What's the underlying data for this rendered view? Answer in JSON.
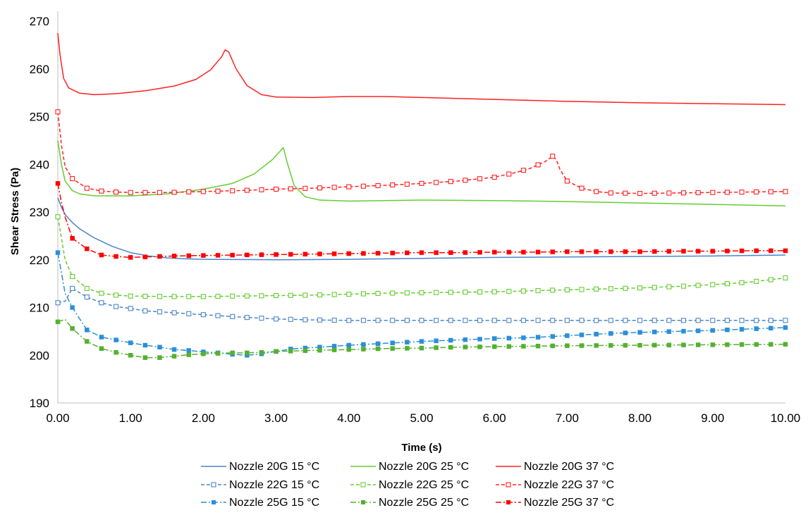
{
  "chart_data": {
    "type": "line",
    "title": "",
    "xlabel": "Time (s)",
    "ylabel": "Shear Stress (Pa)",
    "xlim": [
      0,
      10
    ],
    "ylim": [
      190,
      270
    ],
    "x_ticks": [
      "0.00",
      "1.00",
      "2.00",
      "3.00",
      "4.00",
      "5.00",
      "6.00",
      "7.00",
      "8.00",
      "9.00",
      "10.00"
    ],
    "y_ticks": [
      "190",
      "200",
      "210",
      "220",
      "230",
      "240",
      "250",
      "260",
      "270"
    ],
    "grid": false,
    "legend_position": "bottom",
    "series": [
      {
        "name": "Nozzle 20G 15 °C",
        "color": "#4a86c8",
        "style": "solid",
        "marker": "none",
        "points": [
          [
            0,
            233
          ],
          [
            0.05,
            231
          ],
          [
            0.1,
            229.5
          ],
          [
            0.2,
            227.8
          ],
          [
            0.3,
            226.5
          ],
          [
            0.5,
            224.6
          ],
          [
            0.75,
            222.8
          ],
          [
            1.0,
            221.5
          ],
          [
            1.25,
            220.8
          ],
          [
            1.5,
            220.4
          ],
          [
            1.75,
            220.2
          ],
          [
            2.0,
            220.1
          ],
          [
            3.0,
            220.0
          ],
          [
            4.0,
            220.1
          ],
          [
            5.0,
            220.3
          ],
          [
            6.0,
            220.5
          ],
          [
            7.0,
            220.6
          ],
          [
            8.0,
            220.7
          ],
          [
            9.0,
            220.8
          ],
          [
            10.0,
            221.0
          ]
        ]
      },
      {
        "name": "Nozzle 20G 25 °C",
        "color": "#66cc33",
        "style": "solid",
        "marker": "none",
        "points": [
          [
            0,
            245
          ],
          [
            0.05,
            240
          ],
          [
            0.1,
            236.5
          ],
          [
            0.2,
            234.5
          ],
          [
            0.3,
            233.8
          ],
          [
            0.5,
            233.4
          ],
          [
            1.0,
            233.4
          ],
          [
            1.5,
            233.8
          ],
          [
            2.0,
            234.8
          ],
          [
            2.4,
            236.0
          ],
          [
            2.7,
            238.0
          ],
          [
            2.95,
            241.0
          ],
          [
            3.1,
            243.5
          ],
          [
            3.15,
            240.5
          ],
          [
            3.25,
            235.5
          ],
          [
            3.4,
            233.2
          ],
          [
            3.6,
            232.5
          ],
          [
            4.0,
            232.3
          ],
          [
            5.0,
            232.5
          ],
          [
            6.0,
            232.4
          ],
          [
            7.0,
            232.2
          ],
          [
            8.0,
            231.9
          ],
          [
            9.0,
            231.6
          ],
          [
            10.0,
            231.3
          ]
        ]
      },
      {
        "name": "Nozzle 20G 37 °C",
        "color": "#ff2020",
        "style": "solid",
        "marker": "none",
        "points": [
          [
            0,
            267.5
          ],
          [
            0.03,
            263
          ],
          [
            0.08,
            258
          ],
          [
            0.15,
            256
          ],
          [
            0.3,
            254.9
          ],
          [
            0.5,
            254.6
          ],
          [
            0.8,
            254.8
          ],
          [
            1.2,
            255.4
          ],
          [
            1.6,
            256.4
          ],
          [
            1.9,
            257.8
          ],
          [
            2.1,
            259.8
          ],
          [
            2.25,
            262.5
          ],
          [
            2.3,
            264.0
          ],
          [
            2.35,
            263.5
          ],
          [
            2.45,
            260.0
          ],
          [
            2.6,
            256.5
          ],
          [
            2.8,
            254.6
          ],
          [
            3.0,
            254.1
          ],
          [
            3.5,
            254.0
          ],
          [
            4.0,
            254.2
          ],
          [
            4.5,
            254.2
          ],
          [
            5.0,
            254.0
          ],
          [
            6.0,
            253.6
          ],
          [
            7.0,
            253.2
          ],
          [
            8.0,
            252.9
          ],
          [
            9.0,
            252.7
          ],
          [
            10.0,
            252.5
          ]
        ]
      },
      {
        "name": "Nozzle 22G 15 °C",
        "color": "#4a86c8",
        "style": "dashed",
        "marker": "open-square",
        "points": [
          [
            0,
            211
          ],
          [
            0.1,
            211.3
          ],
          [
            0.2,
            214
          ],
          [
            0.4,
            212.2
          ],
          [
            0.6,
            211.0
          ],
          [
            0.8,
            210.2
          ],
          [
            1.0,
            209.8
          ],
          [
            1.2,
            209.3
          ],
          [
            1.4,
            209.1
          ],
          [
            1.6,
            208.9
          ],
          [
            1.8,
            208.7
          ],
          [
            2.0,
            208.5
          ],
          [
            2.5,
            208.0
          ],
          [
            3.0,
            207.6
          ],
          [
            3.5,
            207.4
          ],
          [
            4.0,
            207.3
          ],
          [
            5.0,
            207.3
          ],
          [
            6.0,
            207.3
          ],
          [
            7.0,
            207.3
          ],
          [
            8.0,
            207.3
          ],
          [
            9.0,
            207.3
          ],
          [
            10.0,
            207.3
          ]
        ]
      },
      {
        "name": "Nozzle 22G 25 °C",
        "color": "#66cc33",
        "style": "dashed",
        "marker": "open-square",
        "points": [
          [
            0,
            229
          ],
          [
            0.1,
            220
          ],
          [
            0.2,
            216.5
          ],
          [
            0.4,
            214.0
          ],
          [
            0.6,
            213.0
          ],
          [
            0.8,
            212.6
          ],
          [
            1.0,
            212.4
          ],
          [
            1.5,
            212.3
          ],
          [
            2.0,
            212.3
          ],
          [
            2.5,
            212.4
          ],
          [
            3.0,
            212.5
          ],
          [
            3.5,
            212.6
          ],
          [
            4.0,
            212.8
          ],
          [
            4.5,
            213.0
          ],
          [
            5.0,
            213.1
          ],
          [
            5.5,
            213.2
          ],
          [
            6.0,
            213.3
          ],
          [
            6.5,
            213.5
          ],
          [
            7.0,
            213.7
          ],
          [
            7.5,
            213.9
          ],
          [
            8.0,
            214.1
          ],
          [
            8.5,
            214.4
          ],
          [
            9.0,
            214.8
          ],
          [
            9.5,
            215.3
          ],
          [
            10.0,
            216.2
          ]
        ]
      },
      {
        "name": "Nozzle 22G 37 °C",
        "color": "#ff2020",
        "style": "dashed",
        "marker": "open-square",
        "points": [
          [
            0,
            251
          ],
          [
            0.05,
            244
          ],
          [
            0.1,
            239.5
          ],
          [
            0.2,
            237.0
          ],
          [
            0.4,
            235.0
          ],
          [
            0.6,
            234.4
          ],
          [
            0.8,
            234.2
          ],
          [
            1.0,
            234.1
          ],
          [
            1.5,
            234.1
          ],
          [
            2.0,
            234.3
          ],
          [
            2.5,
            234.5
          ],
          [
            3.0,
            234.8
          ],
          [
            3.5,
            235.0
          ],
          [
            4.0,
            235.3
          ],
          [
            4.5,
            235.6
          ],
          [
            5.0,
            236.0
          ],
          [
            5.5,
            236.5
          ],
          [
            6.0,
            237.3
          ],
          [
            6.3,
            238.3
          ],
          [
            6.5,
            239.2
          ],
          [
            6.7,
            240.6
          ],
          [
            6.8,
            241.7
          ],
          [
            6.85,
            241.0
          ],
          [
            6.9,
            239.0
          ],
          [
            7.0,
            236.5
          ],
          [
            7.2,
            235.0
          ],
          [
            7.4,
            234.3
          ],
          [
            7.6,
            234.0
          ],
          [
            8.0,
            233.9
          ],
          [
            8.5,
            234.0
          ],
          [
            9.0,
            234.1
          ],
          [
            9.5,
            234.2
          ],
          [
            10.0,
            234.3
          ]
        ]
      },
      {
        "name": "Nozzle 25G 15 °C",
        "color": "#2b8fd8",
        "style": "dashdot",
        "marker": "filled-square",
        "points": [
          [
            0,
            221.5
          ],
          [
            0.1,
            213
          ],
          [
            0.2,
            210
          ],
          [
            0.4,
            205.3
          ],
          [
            0.6,
            203.8
          ],
          [
            0.8,
            203.2
          ],
          [
            1.0,
            202.6
          ],
          [
            1.2,
            202.1
          ],
          [
            1.4,
            201.7
          ],
          [
            1.6,
            201.2
          ],
          [
            1.8,
            201.0
          ],
          [
            2.0,
            200.7
          ],
          [
            2.2,
            200.5
          ],
          [
            2.4,
            200.2
          ],
          [
            2.6,
            200.0
          ],
          [
            2.8,
            200.3
          ],
          [
            3.0,
            200.8
          ],
          [
            3.2,
            201.3
          ],
          [
            3.5,
            201.6
          ],
          [
            4.0,
            202.1
          ],
          [
            4.5,
            202.5
          ],
          [
            5.0,
            202.9
          ],
          [
            5.5,
            203.2
          ],
          [
            6.0,
            203.5
          ],
          [
            6.5,
            203.7
          ],
          [
            7.0,
            204.1
          ],
          [
            7.5,
            204.5
          ],
          [
            8.0,
            204.8
          ],
          [
            8.5,
            205.0
          ],
          [
            9.0,
            205.2
          ],
          [
            9.5,
            205.5
          ],
          [
            10.0,
            205.8
          ]
        ]
      },
      {
        "name": "Nozzle 25G 25 °C",
        "color": "#55b030",
        "style": "dashdot",
        "marker": "filled-square",
        "points": [
          [
            0,
            207
          ],
          [
            0.1,
            207.5
          ],
          [
            0.2,
            205.6
          ],
          [
            0.4,
            202.9
          ],
          [
            0.6,
            201.4
          ],
          [
            0.8,
            200.6
          ],
          [
            1.0,
            200.0
          ],
          [
            1.2,
            199.5
          ],
          [
            1.4,
            199.5
          ],
          [
            1.6,
            199.8
          ],
          [
            1.8,
            200.1
          ],
          [
            2.0,
            200.3
          ],
          [
            2.2,
            200.4
          ],
          [
            2.4,
            200.5
          ],
          [
            2.6,
            200.5
          ],
          [
            2.8,
            200.6
          ],
          [
            3.0,
            200.8
          ],
          [
            3.5,
            201.0
          ],
          [
            4.0,
            201.2
          ],
          [
            4.5,
            201.4
          ],
          [
            5.0,
            201.5
          ],
          [
            5.5,
            201.7
          ],
          [
            6.0,
            201.8
          ],
          [
            7.0,
            202.0
          ],
          [
            8.0,
            202.1
          ],
          [
            9.0,
            202.2
          ],
          [
            10.0,
            202.3
          ]
        ]
      },
      {
        "name": "Nozzle 25G 37 °C",
        "color": "#ff0000",
        "style": "dashdot",
        "marker": "filled-square",
        "points": [
          [
            0,
            236
          ],
          [
            0.05,
            232
          ],
          [
            0.1,
            229
          ],
          [
            0.2,
            224.5
          ],
          [
            0.4,
            222.3
          ],
          [
            0.6,
            221.0
          ],
          [
            0.8,
            220.7
          ],
          [
            1.0,
            220.5
          ],
          [
            1.2,
            220.6
          ],
          [
            1.4,
            220.7
          ],
          [
            1.6,
            220.8
          ],
          [
            2.0,
            220.9
          ],
          [
            2.5,
            221.0
          ],
          [
            3.0,
            221.1
          ],
          [
            3.5,
            221.2
          ],
          [
            4.0,
            221.3
          ],
          [
            4.5,
            221.4
          ],
          [
            5.0,
            221.5
          ],
          [
            5.5,
            221.5
          ],
          [
            6.0,
            221.6
          ],
          [
            6.5,
            221.6
          ],
          [
            7.0,
            221.7
          ],
          [
            7.5,
            221.7
          ],
          [
            8.0,
            221.7
          ],
          [
            8.5,
            221.8
          ],
          [
            9.0,
            221.8
          ],
          [
            9.5,
            221.9
          ],
          [
            10.0,
            221.9
          ]
        ]
      }
    ]
  }
}
